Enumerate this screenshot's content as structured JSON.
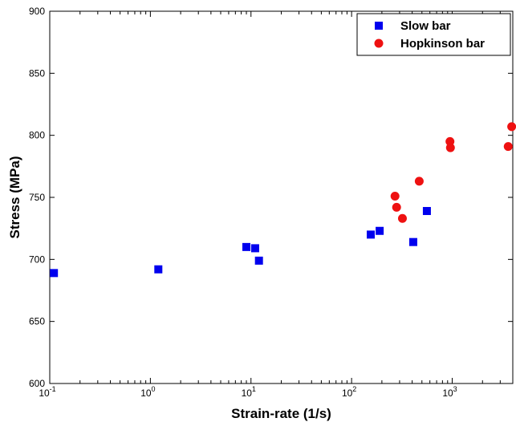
{
  "chart_data": {
    "type": "scatter",
    "xscale": "log",
    "xlabel": "Strain-rate (1/s)",
    "ylabel": "Stress (MPa)",
    "xlim": [
      0.1,
      4000
    ],
    "ylim": [
      600,
      900
    ],
    "x_ticks": [
      {
        "value": 0.1,
        "base": "10",
        "exp": "-1"
      },
      {
        "value": 1,
        "base": "10",
        "exp": "0"
      },
      {
        "value": 10,
        "base": "10",
        "exp": "1"
      },
      {
        "value": 100,
        "base": "10",
        "exp": "2"
      },
      {
        "value": 1000,
        "base": "10",
        "exp": "3"
      }
    ],
    "y_ticks": [
      "600",
      "650",
      "700",
      "750",
      "800",
      "850",
      "900"
    ],
    "grid": false,
    "legend_position": "top-right",
    "series": [
      {
        "name": "Slow bar",
        "marker": "square",
        "color": "#0000ee",
        "points": [
          {
            "x": 0.11,
            "y": 689
          },
          {
            "x": 1.2,
            "y": 692
          },
          {
            "x": 9,
            "y": 710
          },
          {
            "x": 11,
            "y": 709
          },
          {
            "x": 12,
            "y": 699
          },
          {
            "x": 155,
            "y": 720
          },
          {
            "x": 190,
            "y": 723
          },
          {
            "x": 410,
            "y": 714
          },
          {
            "x": 560,
            "y": 739
          }
        ]
      },
      {
        "name": "Hopkinson bar",
        "marker": "circle",
        "color": "#ee1111",
        "points": [
          {
            "x": 270,
            "y": 751
          },
          {
            "x": 280,
            "y": 742
          },
          {
            "x": 320,
            "y": 733
          },
          {
            "x": 470,
            "y": 763
          },
          {
            "x": 950,
            "y": 795
          },
          {
            "x": 960,
            "y": 790
          },
          {
            "x": 3600,
            "y": 791
          },
          {
            "x": 3900,
            "y": 807
          }
        ]
      }
    ]
  }
}
